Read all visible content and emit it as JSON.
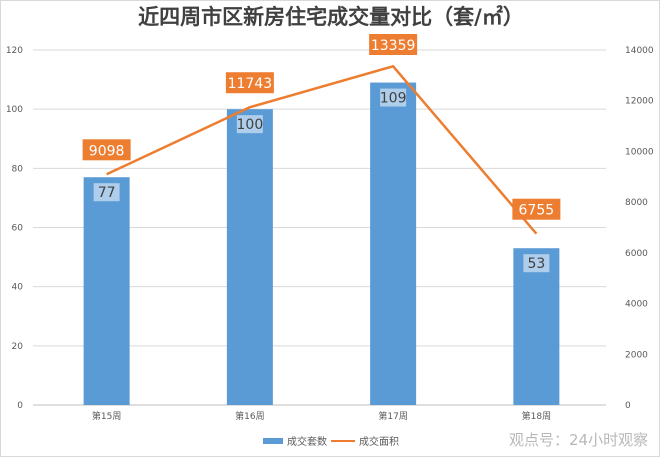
{
  "chart_data": {
    "type": "bar+line",
    "title": "近四周市区新房住宅成交量对比（套/㎡）",
    "categories": [
      "第15周",
      "第16周",
      "第17周",
      "第18周"
    ],
    "series": [
      {
        "name": "成交套数",
        "type": "bar",
        "axis": "left",
        "values": [
          77,
          100,
          109,
          53
        ],
        "color": "#5b9bd5"
      },
      {
        "name": "成交面积",
        "type": "line",
        "axis": "right",
        "values": [
          9098,
          11743,
          13359,
          6755
        ],
        "color": "#ed7d31"
      }
    ],
    "yleft": {
      "min": 0,
      "max": 120,
      "step": 20
    },
    "yright": {
      "min": 0,
      "max": 14000,
      "step": 2000
    },
    "grid": true,
    "legend": "bottom"
  },
  "watermark": "观点号：24小时观察"
}
